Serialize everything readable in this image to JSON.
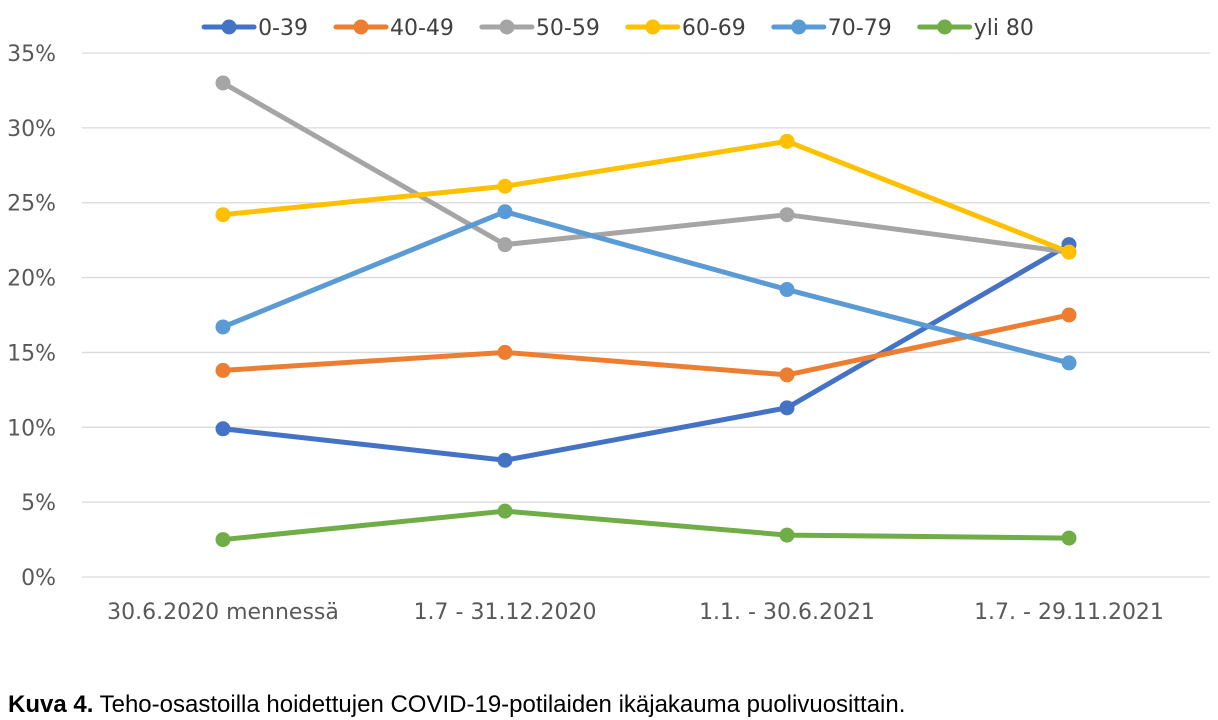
{
  "chart_data": {
    "type": "line",
    "categories": [
      "30.6.2020 mennessä",
      "1.7 - 31.12.2020",
      "1.1. - 30.6.2021",
      "1.7. - 29.11.2021"
    ],
    "series": [
      {
        "name": "0-39",
        "color": "#4472C4",
        "values": [
          9.9,
          7.8,
          11.3,
          22.2
        ]
      },
      {
        "name": "40-49",
        "color": "#ED7D31",
        "values": [
          13.8,
          15.0,
          13.5,
          17.5
        ]
      },
      {
        "name": "50-59",
        "color": "#A5A5A5",
        "values": [
          33.0,
          22.2,
          24.2,
          21.7
        ]
      },
      {
        "name": "60-69",
        "color": "#FFC000",
        "values": [
          24.2,
          26.1,
          29.1,
          21.7
        ]
      },
      {
        "name": "70-79",
        "color": "#5B9BD5",
        "values": [
          16.7,
          24.4,
          19.2,
          14.3
        ]
      },
      {
        "name": "yli 80",
        "color": "#70AD47",
        "values": [
          2.5,
          4.4,
          2.8,
          2.6
        ]
      }
    ],
    "ylim": [
      0,
      35
    ],
    "yticks": [
      "0%",
      "5%",
      "10%",
      "15%",
      "20%",
      "25%",
      "30%",
      "35%"
    ],
    "grid": true,
    "legend_position": "top"
  },
  "caption": {
    "label": "Kuva 4.",
    "text": " Teho-osastoilla hoidettujen COVID-19-potilaiden ikäjakauma puolivuosittain."
  }
}
